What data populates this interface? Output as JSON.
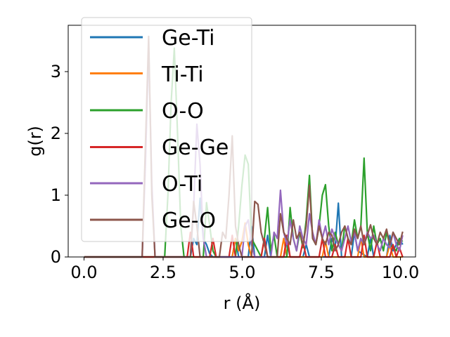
{
  "chart_data": {
    "type": "line",
    "title": "",
    "xlabel": "r (Å)",
    "ylabel": "g(r)",
    "xlim": [
      -0.5,
      10.3
    ],
    "ylim": [
      0,
      3.75
    ],
    "xticks": [
      0.0,
      2.5,
      5.0,
      7.5,
      10.0
    ],
    "xtick_labels": [
      "0.0",
      "2.5",
      "5.0",
      "7.5",
      "10.0"
    ],
    "yticks": [
      0,
      1,
      2,
      3
    ],
    "ytick_labels": [
      "0",
      "1",
      "2",
      "3"
    ],
    "legend_position": "top-left",
    "grid": false,
    "series": [
      {
        "name": "Ge-Ti",
        "color": "#1f77b4",
        "x": [
          0,
          3.3,
          3.4,
          3.5,
          3.6,
          3.7,
          3.8,
          3.9,
          4.0,
          4.6,
          4.7,
          4.8,
          5.1,
          5.2,
          5.3,
          5.6,
          5.7,
          5.8,
          6.2,
          6.3,
          6.4,
          6.8,
          6.9,
          7.0,
          7.6,
          7.7,
          7.8,
          7.9,
          8.0,
          8.3,
          8.4,
          8.5,
          8.8,
          8.9,
          9.0,
          9.4,
          9.5,
          9.6,
          9.8,
          9.9
        ],
        "y": [
          0,
          0,
          0.3,
          0.2,
          0.95,
          0.3,
          0.2,
          0.05,
          0,
          0,
          0.3,
          0,
          0,
          0.5,
          0,
          0,
          0.35,
          0,
          0,
          0.25,
          0,
          0,
          0.2,
          0,
          0,
          0.3,
          0.15,
          0.87,
          0,
          0,
          0.4,
          0.1,
          0,
          0.3,
          0,
          0,
          0.35,
          0.1,
          0.3,
          0.2
        ]
      },
      {
        "name": "Ti-Ti",
        "color": "#ff7f0e",
        "x": [
          0,
          4.6,
          4.7,
          4.8,
          4.9,
          5.0,
          5.1,
          5.2,
          6.1,
          6.2,
          6.3,
          7.4,
          7.5,
          7.6,
          8.5,
          8.6,
          8.7,
          9.4,
          9.5,
          9.6,
          9.9
        ],
        "y": [
          0,
          0,
          0.3,
          0.1,
          0.25,
          0.55,
          0.2,
          0,
          0,
          0.3,
          0,
          0,
          0.25,
          0,
          0,
          0.3,
          0,
          0,
          0.2,
          0,
          0
        ]
      },
      {
        "name": "O-O",
        "color": "#2ca02c",
        "x": [
          0,
          2.5,
          2.6,
          2.7,
          2.8,
          2.9,
          3.0,
          3.1,
          3.7,
          3.8,
          3.9,
          4.0,
          4.1,
          4.7,
          4.8,
          4.9,
          5.0,
          5.1,
          5.2,
          5.5,
          5.6,
          5.7,
          5.8,
          5.9,
          6.0,
          6.3,
          6.4,
          6.5,
          6.6,
          6.7,
          6.8,
          6.9,
          7.0,
          7.1,
          7.2,
          7.3,
          7.4,
          7.5,
          7.6,
          7.7,
          7.8,
          7.9,
          8.0,
          8.1,
          8.2,
          8.3,
          8.4,
          8.5,
          8.6,
          8.7,
          8.8,
          8.9,
          9.0,
          9.1,
          9.2,
          9.3,
          9.4,
          9.5,
          9.6,
          9.7,
          9.8,
          9.9
        ],
        "y": [
          0,
          0,
          1.0,
          2.5,
          3.38,
          2.0,
          0.5,
          0,
          0,
          0.88,
          0.5,
          0.1,
          0,
          0,
          0.5,
          1.15,
          1.65,
          1.5,
          0.3,
          0,
          0.3,
          0.8,
          0.1,
          0.35,
          0,
          0,
          0.8,
          0.3,
          0.1,
          0.4,
          0.15,
          0.6,
          1.32,
          0.3,
          0.2,
          0.5,
          1.0,
          1.17,
          0.5,
          0.1,
          0.4,
          0.2,
          0.1,
          0.5,
          0.3,
          0.2,
          0.6,
          0.3,
          0.5,
          1.6,
          0.4,
          0.1,
          0.5,
          0.2,
          0.3,
          0.1,
          0.4,
          0.2,
          0.15,
          0.1,
          0.3,
          0.25
        ]
      },
      {
        "name": "Ge-Ge",
        "color": "#d62728",
        "x": [
          0,
          3.2,
          3.3,
          3.4,
          3.9,
          4.0,
          4.1,
          4.5,
          4.6,
          4.7,
          5.5,
          5.6,
          5.7,
          6.2,
          6.3,
          6.4,
          6.7,
          6.8,
          6.9,
          7.3,
          7.4,
          7.5,
          7.7,
          7.8,
          7.9,
          8.1,
          8.2,
          8.3,
          8.6,
          8.7,
          8.8,
          9.0,
          9.1,
          9.2,
          9.5,
          9.6,
          9.7,
          9.8,
          9.9
        ],
        "y": [
          0,
          0,
          0.4,
          0,
          0,
          0.3,
          0,
          0,
          0.35,
          0,
          0,
          0.3,
          0,
          0,
          0.35,
          0,
          0,
          0.25,
          0,
          0,
          0.3,
          0,
          0,
          0.2,
          0,
          0,
          0.3,
          0,
          0,
          0.35,
          0,
          0,
          0.25,
          0,
          0,
          0.2,
          0,
          0.15,
          0
        ]
      },
      {
        "name": "O-Ti",
        "color": "#9467bd",
        "x": [
          0,
          1.8,
          1.9,
          2.0,
          2.1,
          2.2,
          3.3,
          3.4,
          3.5,
          3.6,
          3.7,
          3.8,
          4.9,
          5.0,
          5.1,
          5.2,
          5.3,
          5.8,
          5.9,
          6.0,
          6.1,
          6.2,
          6.3,
          6.4,
          6.5,
          6.6,
          6.7,
          6.8,
          6.9,
          7.0,
          7.1,
          7.2,
          7.3,
          7.4,
          7.5,
          7.6,
          7.7,
          7.8,
          7.9,
          8.0,
          8.1,
          8.2,
          8.3,
          8.4,
          8.5,
          8.6,
          8.7,
          8.8,
          8.9,
          9.0,
          9.1,
          9.2,
          9.3,
          9.4,
          9.5,
          9.6,
          9.7,
          9.8,
          9.9
        ],
        "y": [
          0,
          0,
          1.5,
          3.4,
          1.2,
          0,
          0,
          0.8,
          2.15,
          1.5,
          0.3,
          0,
          0,
          0.5,
          0.6,
          0.2,
          0,
          0,
          0.4,
          0.3,
          1.08,
          0.4,
          0.2,
          0.6,
          0.3,
          0.1,
          0.5,
          0.3,
          0.2,
          0.7,
          0.4,
          0.2,
          0.6,
          0.3,
          0.5,
          0.2,
          0.45,
          0.3,
          0.2,
          0.1,
          0.3,
          0.5,
          0.25,
          0.4,
          0.1,
          0.3,
          0.2,
          0.4,
          0.3,
          0.35,
          0.2,
          0.1,
          0.3,
          0.2,
          0.15,
          0.4,
          0.2,
          0.1,
          0.35
        ]
      },
      {
        "name": "Ge-O",
        "color": "#8c564b",
        "x": [
          0,
          1.8,
          1.9,
          2.0,
          2.1,
          2.2,
          3.3,
          3.4,
          3.5,
          3.6,
          4.2,
          4.3,
          4.4,
          4.5,
          4.6,
          4.7,
          4.8,
          4.9,
          5.2,
          5.3,
          5.4,
          5.5,
          5.6,
          5.7,
          6.0,
          6.1,
          6.2,
          6.3,
          6.4,
          6.5,
          6.6,
          6.7,
          6.8,
          6.9,
          7.0,
          7.1,
          7.2,
          7.3,
          7.4,
          7.5,
          7.6,
          7.7,
          7.8,
          7.9,
          8.0,
          8.1,
          8.2,
          8.3,
          8.4,
          8.5,
          8.6,
          8.7,
          8.8,
          8.9,
          9.0,
          9.1,
          9.2,
          9.3,
          9.4,
          9.5,
          9.6,
          9.7,
          9.8,
          9.9
        ],
        "y": [
          0,
          0,
          1.8,
          3.57,
          1.0,
          0,
          0,
          0.9,
          0.5,
          0,
          0,
          0.4,
          0.3,
          1.0,
          1.96,
          0.5,
          0.2,
          0,
          0,
          0.9,
          0.85,
          0.4,
          0.2,
          0,
          0,
          0.7,
          0.4,
          0.3,
          0.2,
          0.6,
          0.3,
          0.4,
          0.2,
          0.5,
          1.16,
          0.3,
          0.2,
          0.5,
          0.3,
          0.2,
          0.4,
          0.35,
          0.1,
          0.2,
          0.4,
          0.5,
          0.3,
          0.2,
          0.45,
          0.3,
          0.5,
          0.2,
          0.35,
          0.52,
          0.3,
          0.2,
          0.4,
          0.3,
          0.45,
          0.2,
          0.4,
          0.3,
          0.2,
          0.41
        ]
      }
    ]
  }
}
